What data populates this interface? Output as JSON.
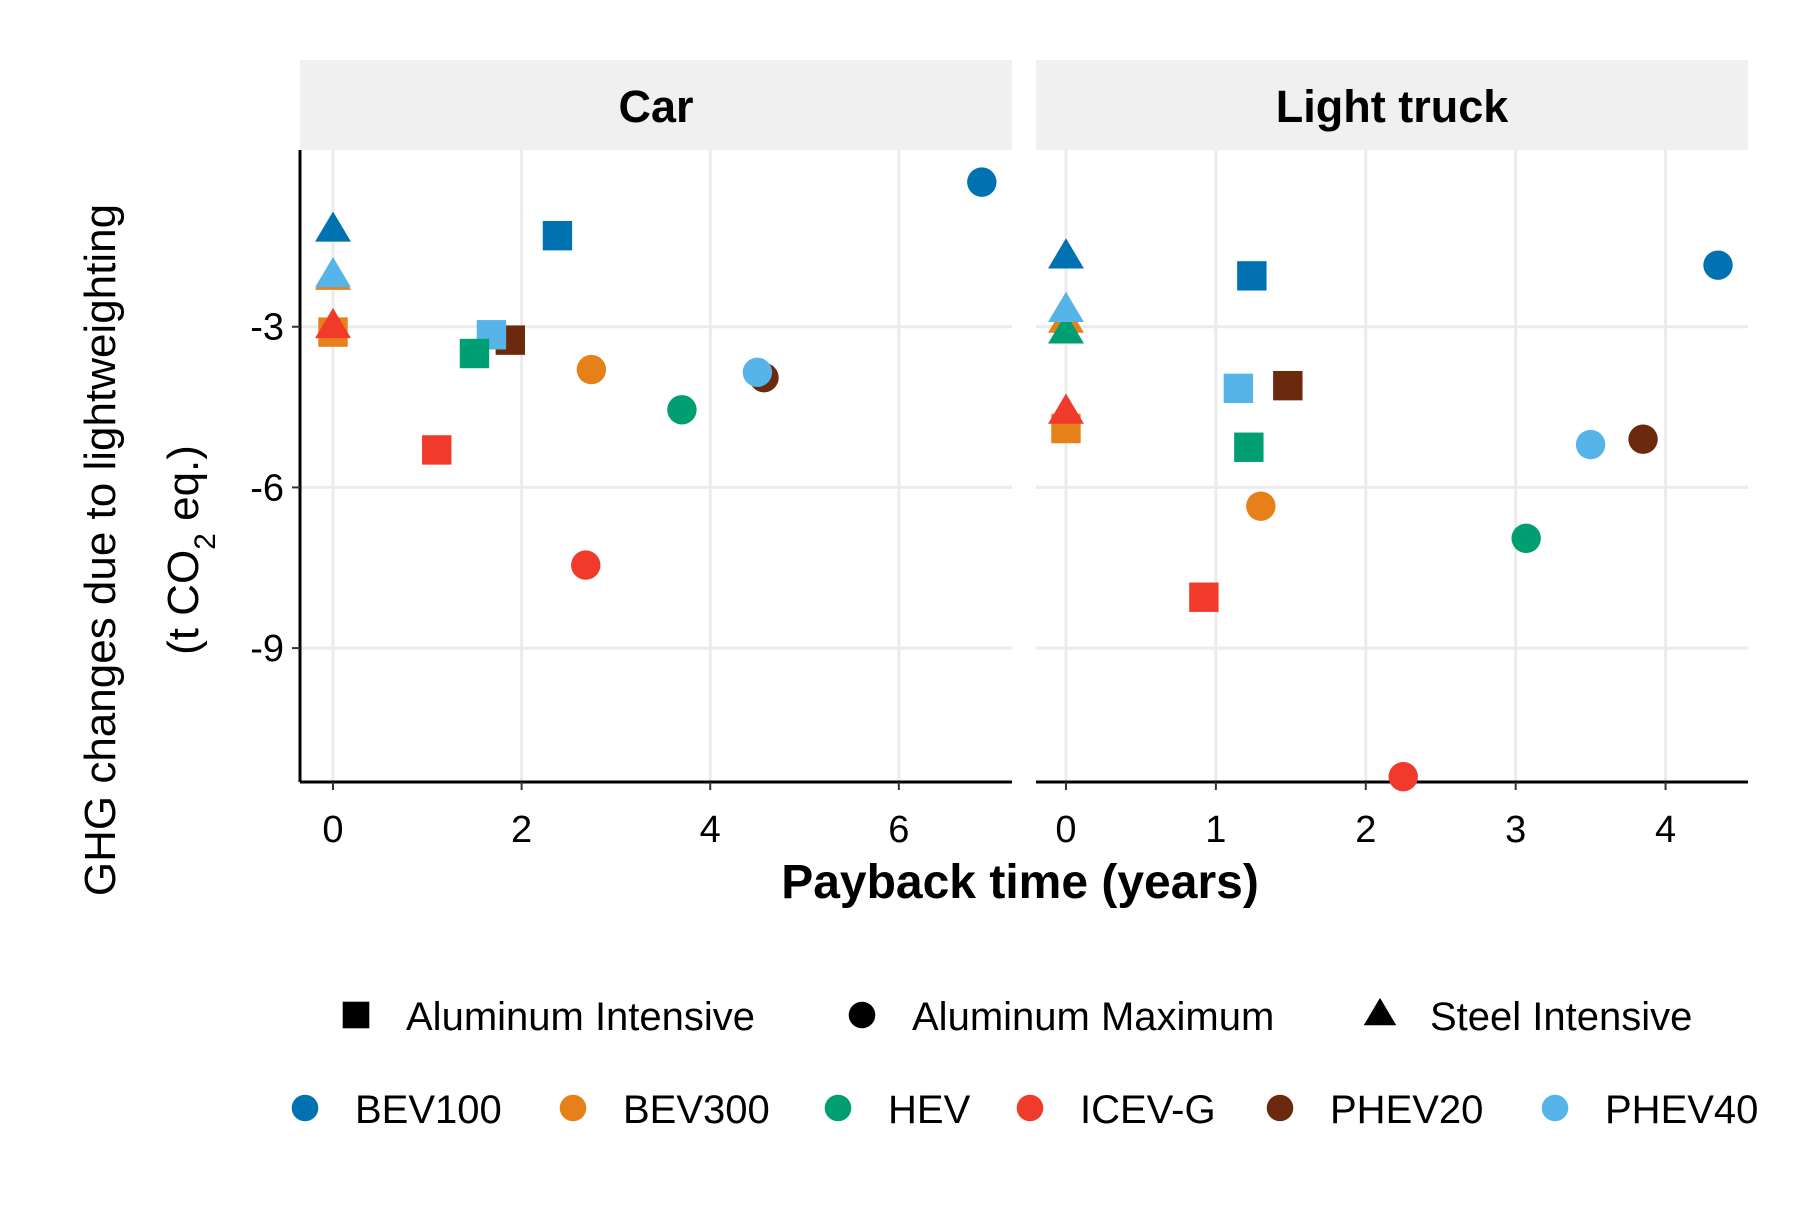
{
  "chart_data": {
    "type": "scatter",
    "facet_column": "vehicle_class",
    "y_axis": {
      "label_line1": "GHG changes due to lightweighting",
      "label_line2_prefix": "(t CO",
      "label_line2_sub": "2",
      "label_line2_suffix": " eq.)",
      "ticks": [
        -3,
        -6,
        -9
      ],
      "tick_labels": [
        "-3",
        "-6",
        "-9"
      ],
      "range": [
        -11.5,
        0.3
      ]
    },
    "x_axis": {
      "label": "Payback time (years)"
    },
    "grid": true,
    "legend_position": "bottom",
    "shape_legend": [
      {
        "key": "Aluminum Intensive",
        "label": "Aluminum Intensive",
        "shape": "square"
      },
      {
        "key": "Aluminum Maximum",
        "label": "Aluminum Maximum",
        "shape": "circle"
      },
      {
        "key": "Steel Intensive",
        "label": "Steel Intensive",
        "shape": "triangle"
      }
    ],
    "color_legend": [
      {
        "key": "BEV100",
        "label": "BEV100",
        "color": "#0072b2"
      },
      {
        "key": "BEV300",
        "label": "BEV300",
        "color": "#e8801a"
      },
      {
        "key": "HEV",
        "label": "HEV",
        "color": "#009e73"
      },
      {
        "key": "ICEV-G",
        "label": "ICEV-G",
        "color": "#f03b2c"
      },
      {
        "key": "PHEV20",
        "label": "PHEV20",
        "color": "#6b2a0e"
      },
      {
        "key": "PHEV40",
        "label": "PHEV40",
        "color": "#56b4e9"
      }
    ],
    "panels": [
      {
        "title": "Car",
        "x_range": [
          -0.35,
          7.2
        ],
        "x_ticks": [
          0,
          2,
          4,
          6
        ],
        "x_tick_labels": [
          "0",
          "2",
          "4",
          "6"
        ],
        "points": [
          {
            "x": 0,
            "y": -1.2,
            "vehicle": "BEV100",
            "material": "Steel Intensive"
          },
          {
            "x": 0,
            "y": -2.1,
            "vehicle": "BEV300",
            "material": "Steel Intensive"
          },
          {
            "x": 0,
            "y": -2.05,
            "vehicle": "PHEV40",
            "material": "Steel Intensive"
          },
          {
            "x": 0,
            "y": -3.1,
            "vehicle": "BEV300",
            "material": "Aluminum Intensive"
          },
          {
            "x": 0,
            "y": -3.0,
            "vehicle": "ICEV-G",
            "material": "Steel Intensive"
          },
          {
            "x": 2.38,
            "y": -1.3,
            "vehicle": "BEV100",
            "material": "Aluminum Intensive"
          },
          {
            "x": 6.88,
            "y": -0.3,
            "vehicle": "BEV100",
            "material": "Aluminum Maximum"
          },
          {
            "x": 1.88,
            "y": -3.25,
            "vehicle": "PHEV20",
            "material": "Aluminum Intensive"
          },
          {
            "x": 1.68,
            "y": -3.15,
            "vehicle": "PHEV40",
            "material": "Aluminum Intensive"
          },
          {
            "x": 1.5,
            "y": -3.5,
            "vehicle": "HEV",
            "material": "Aluminum Intensive"
          },
          {
            "x": 2.74,
            "y": -3.8,
            "vehicle": "BEV300",
            "material": "Aluminum Maximum"
          },
          {
            "x": 3.7,
            "y": -4.55,
            "vehicle": "HEV",
            "material": "Aluminum Maximum"
          },
          {
            "x": 4.57,
            "y": -3.95,
            "vehicle": "PHEV20",
            "material": "Aluminum Maximum"
          },
          {
            "x": 4.5,
            "y": -3.85,
            "vehicle": "PHEV40",
            "material": "Aluminum Maximum"
          },
          {
            "x": 1.1,
            "y": -5.3,
            "vehicle": "ICEV-G",
            "material": "Aluminum Intensive"
          },
          {
            "x": 2.68,
            "y": -7.45,
            "vehicle": "ICEV-G",
            "material": "Aluminum Maximum"
          }
        ]
      },
      {
        "title": "Light truck",
        "x_range": [
          -0.2,
          4.55
        ],
        "x_ticks": [
          0,
          1,
          2,
          3,
          4
        ],
        "x_tick_labels": [
          "0",
          "1",
          "2",
          "3",
          "4"
        ],
        "points": [
          {
            "x": 0,
            "y": -1.7,
            "vehicle": "BEV100",
            "material": "Steel Intensive"
          },
          {
            "x": 0,
            "y": -2.9,
            "vehicle": "BEV300",
            "material": "Steel Intensive"
          },
          {
            "x": 0,
            "y": -3.1,
            "vehicle": "HEV",
            "material": "Steel Intensive"
          },
          {
            "x": 0,
            "y": -2.7,
            "vehicle": "PHEV40",
            "material": "Steel Intensive"
          },
          {
            "x": 0,
            "y": -4.9,
            "vehicle": "BEV300",
            "material": "Aluminum Intensive"
          },
          {
            "x": 0,
            "y": -4.6,
            "vehicle": "ICEV-G",
            "material": "Steel Intensive"
          },
          {
            "x": 1.24,
            "y": -2.05,
            "vehicle": "BEV100",
            "material": "Aluminum Intensive"
          },
          {
            "x": 4.35,
            "y": -1.85,
            "vehicle": "BEV100",
            "material": "Aluminum Maximum"
          },
          {
            "x": 1.48,
            "y": -4.1,
            "vehicle": "PHEV20",
            "material": "Aluminum Intensive"
          },
          {
            "x": 1.15,
            "y": -4.15,
            "vehicle": "PHEV40",
            "material": "Aluminum Intensive"
          },
          {
            "x": 1.22,
            "y": -5.25,
            "vehicle": "HEV",
            "material": "Aluminum Intensive"
          },
          {
            "x": 1.3,
            "y": -6.35,
            "vehicle": "BEV300",
            "material": "Aluminum Maximum"
          },
          {
            "x": 3.85,
            "y": -5.1,
            "vehicle": "PHEV20",
            "material": "Aluminum Maximum"
          },
          {
            "x": 3.5,
            "y": -5.2,
            "vehicle": "PHEV40",
            "material": "Aluminum Maximum"
          },
          {
            "x": 3.07,
            "y": -6.95,
            "vehicle": "HEV",
            "material": "Aluminum Maximum"
          },
          {
            "x": 0.92,
            "y": -8.05,
            "vehicle": "ICEV-G",
            "material": "Aluminum Intensive"
          },
          {
            "x": 2.25,
            "y": -11.4,
            "vehicle": "ICEV-G",
            "material": "Aluminum Maximum"
          }
        ]
      }
    ]
  }
}
